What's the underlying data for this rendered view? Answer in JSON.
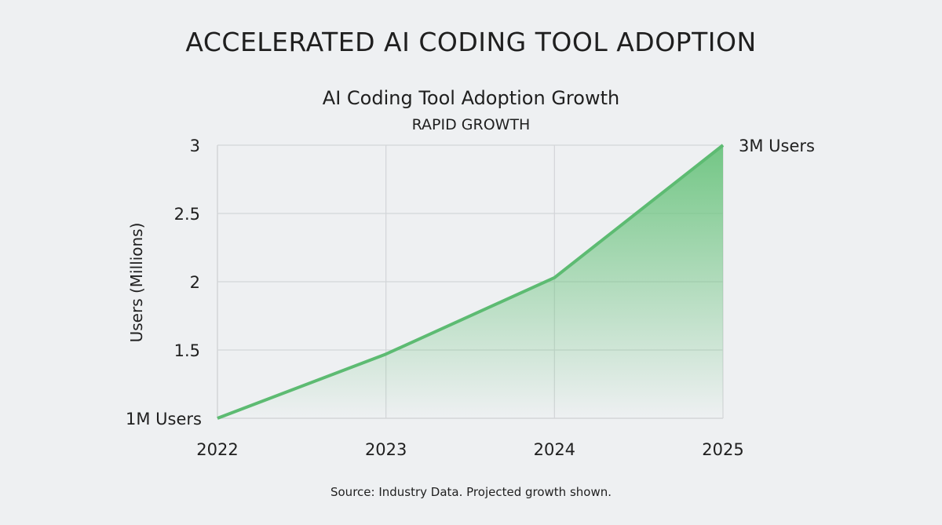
{
  "page_title": "ACCELERATED AI CODING TOOL ADOPTION",
  "source_note": "Source: Industry Data. Projected growth shown.",
  "chart_data": {
    "type": "area",
    "title": "AI Coding Tool Adoption Growth",
    "subtitle": "RAPID GROWTH",
    "xlabel": "",
    "ylabel": "Users (Millions)",
    "categories": [
      "2022",
      "2023",
      "2024",
      "2025"
    ],
    "values": [
      1.0,
      1.47,
      2.03,
      3.0
    ],
    "ylim": [
      1,
      3
    ],
    "yticks": [
      1.5,
      2,
      2.5,
      3
    ],
    "ytick_labels": [
      "1.5",
      "2",
      "2.5",
      "3"
    ],
    "grid": true,
    "annotations": [
      {
        "x": "2022",
        "y": 1.0,
        "text": "1M Users"
      },
      {
        "x": "2025",
        "y": 3.0,
        "text": "3M Users"
      }
    ],
    "colors": {
      "line": "#5dbb72",
      "fill": "#6cc47f",
      "grid": "#d3d5d8"
    }
  }
}
